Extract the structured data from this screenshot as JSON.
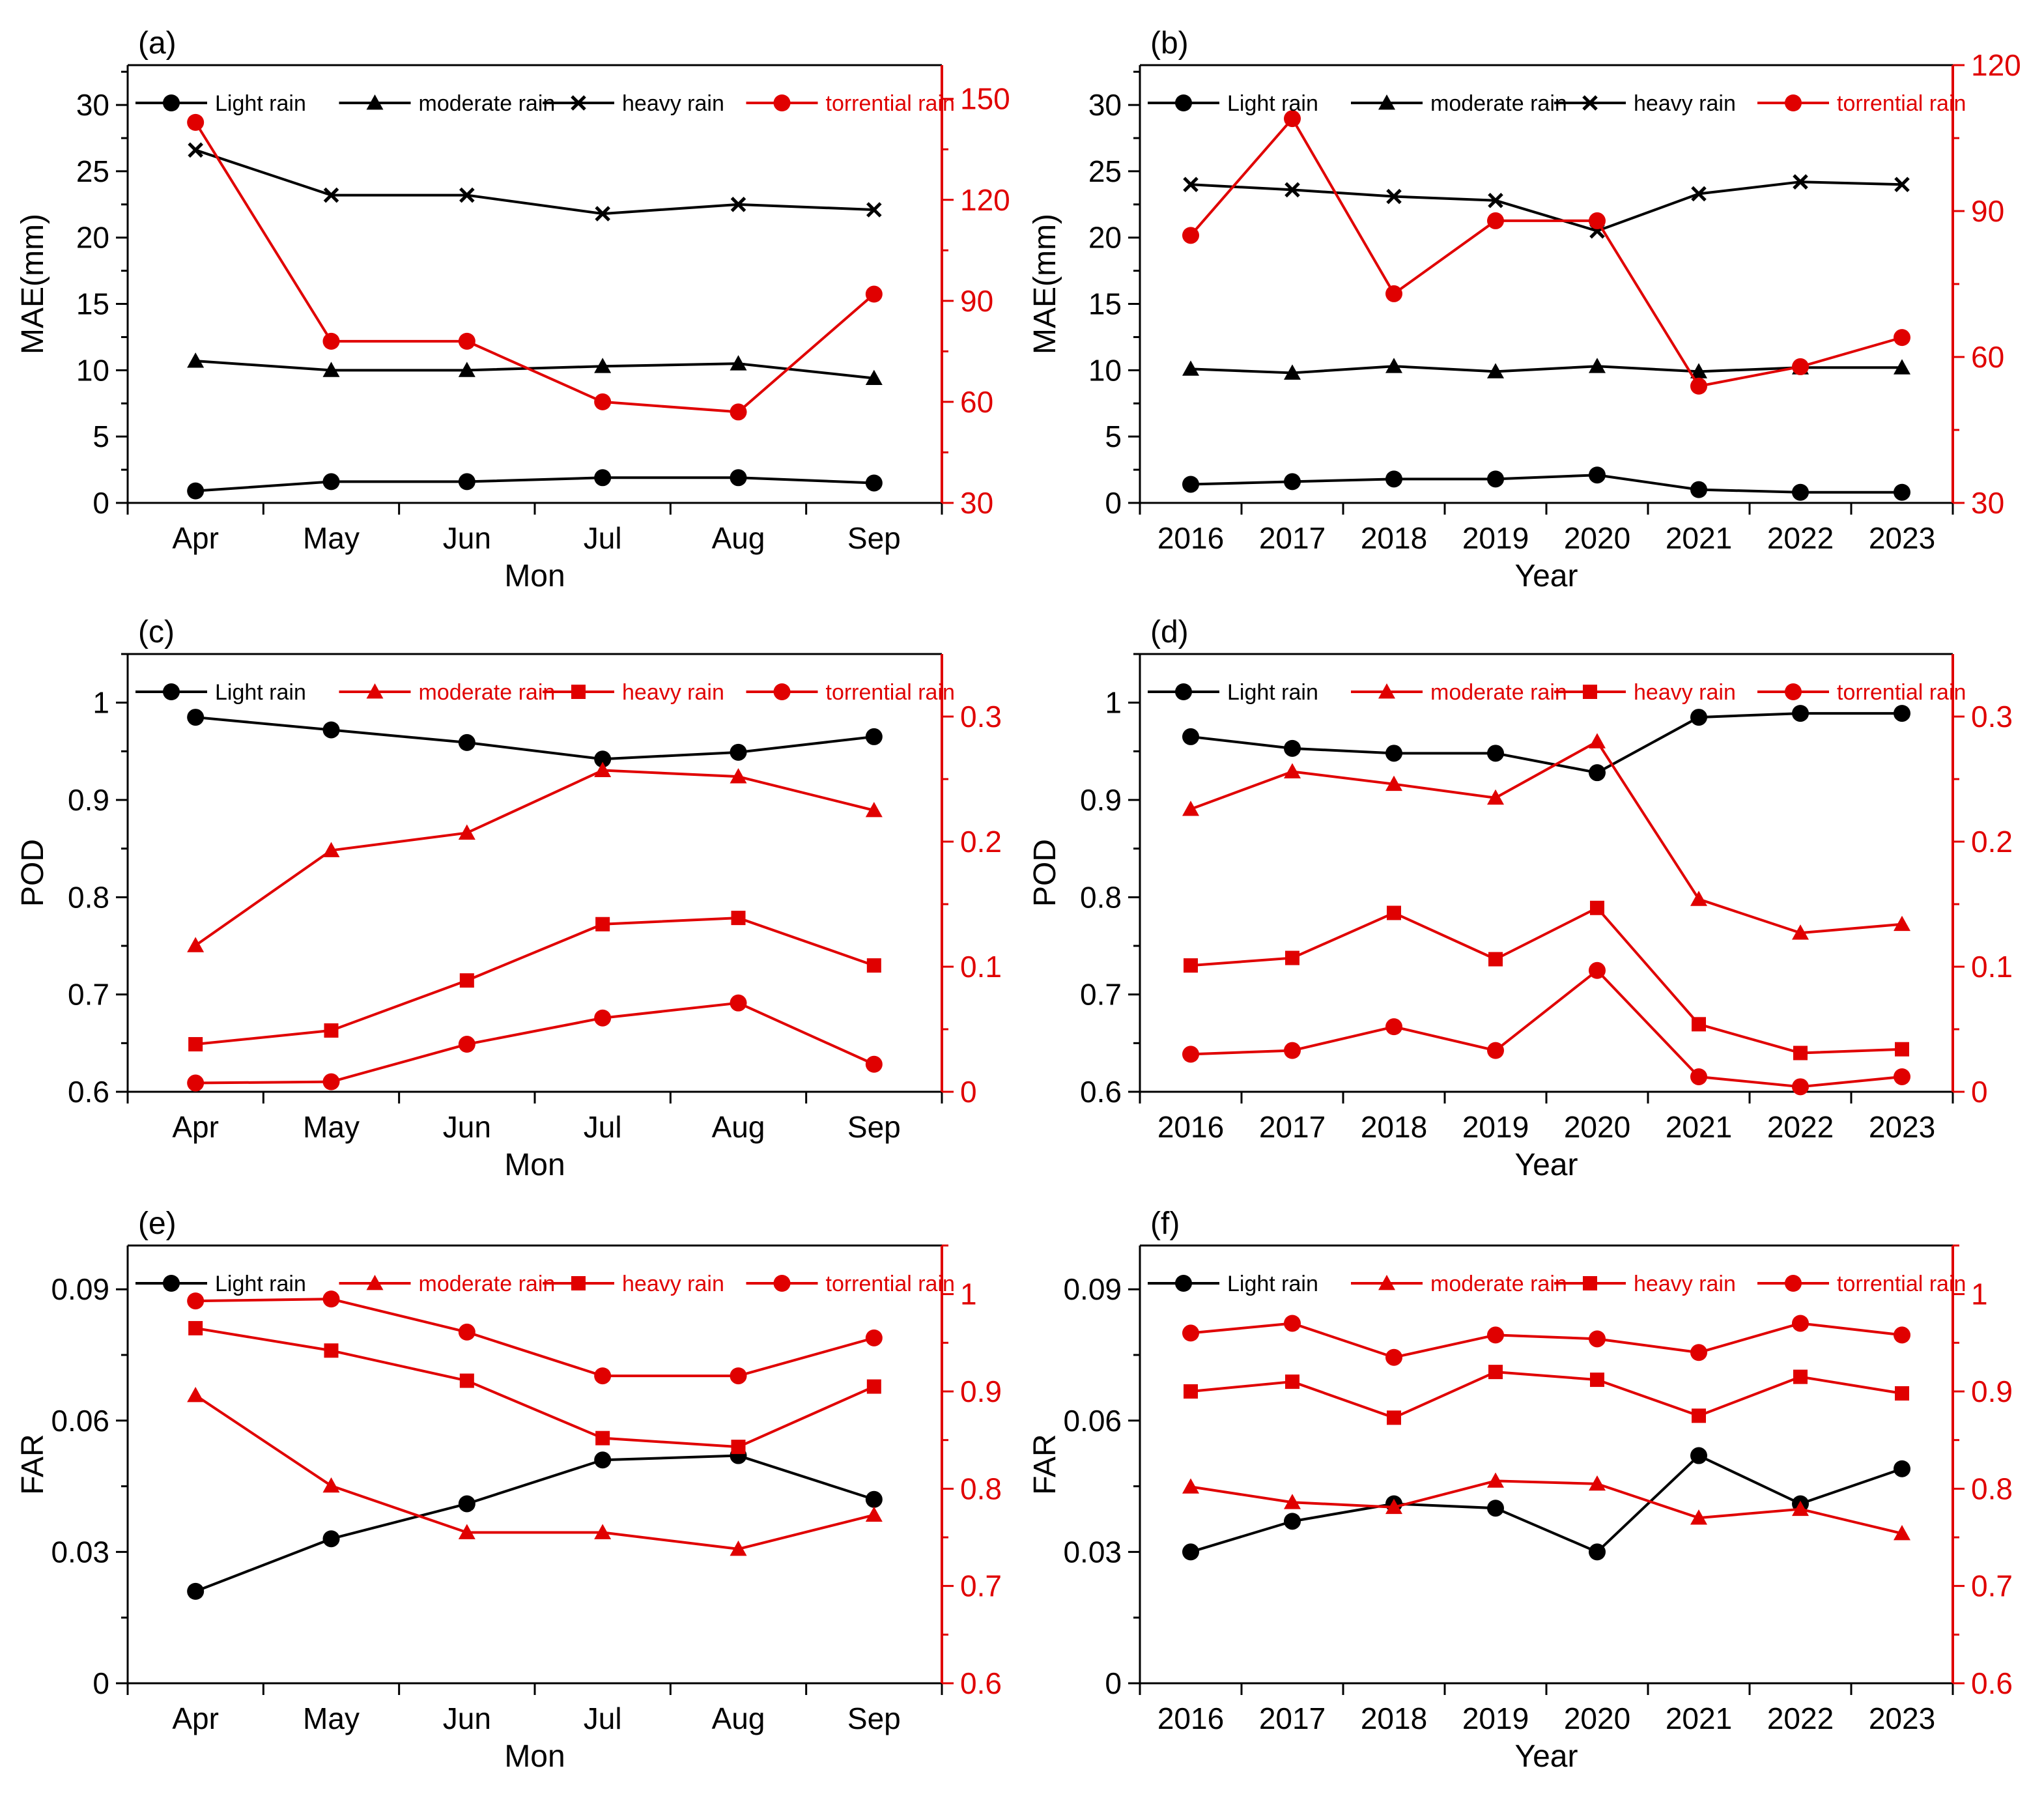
{
  "colors": {
    "black": "#000000",
    "red": "#e00000"
  },
  "chart_data": [
    {
      "type": "line",
      "panel_label": "(a)",
      "xlabel": "Mon",
      "ylabel": "MAE(mm)",
      "categories": [
        "Apr",
        "May",
        "Jun",
        "Jul",
        "Aug",
        "Sep"
      ],
      "left_axis": {
        "ylim": [
          0,
          33
        ],
        "ticks": [
          0,
          5,
          10,
          15,
          20,
          25,
          30
        ],
        "tick_labels": [
          "0",
          "5",
          "10",
          "15",
          "20",
          "25",
          "30"
        ]
      },
      "right_axis": {
        "ylim": [
          30,
          160
        ],
        "ticks": [
          30,
          60,
          90,
          120,
          150
        ],
        "tick_labels": [
          "30",
          "60",
          "90",
          "120",
          "150"
        ]
      },
      "series": [
        {
          "name": "Light rain",
          "axis": "left",
          "color": "black",
          "marker": "circle",
          "values": [
            0.9,
            1.6,
            1.6,
            1.9,
            1.9,
            1.5
          ]
        },
        {
          "name": "moderate rain",
          "axis": "left",
          "color": "black",
          "marker": "triangle",
          "values": [
            10.7,
            10.0,
            10.0,
            10.3,
            10.5,
            9.4
          ]
        },
        {
          "name": "heavy rain",
          "axis": "left",
          "color": "black",
          "marker": "x",
          "values": [
            26.6,
            23.2,
            23.2,
            21.8,
            22.5,
            22.1
          ]
        },
        {
          "name": "torrential rain",
          "axis": "right",
          "color": "red",
          "marker": "circle",
          "values": [
            143,
            78,
            78,
            60,
            57,
            92
          ]
        }
      ]
    },
    {
      "type": "line",
      "panel_label": "(b)",
      "xlabel": "Year",
      "ylabel": "MAE(mm)",
      "categories": [
        "2016",
        "2017",
        "2018",
        "2019",
        "2020",
        "2021",
        "2022",
        "2023"
      ],
      "left_axis": {
        "ylim": [
          0,
          33
        ],
        "ticks": [
          0,
          5,
          10,
          15,
          20,
          25,
          30
        ],
        "tick_labels": [
          "0",
          "5",
          "10",
          "15",
          "20",
          "25",
          "30"
        ]
      },
      "right_axis": {
        "ylim": [
          30,
          120
        ],
        "ticks": [
          30,
          60,
          90,
          120
        ],
        "tick_labels": [
          "30",
          "60",
          "90",
          "120"
        ]
      },
      "series": [
        {
          "name": "Light rain",
          "axis": "left",
          "color": "black",
          "marker": "circle",
          "values": [
            1.4,
            1.6,
            1.8,
            1.8,
            2.1,
            1.0,
            0.8,
            0.8
          ]
        },
        {
          "name": "moderate rain",
          "axis": "left",
          "color": "black",
          "marker": "triangle",
          "values": [
            10.1,
            9.8,
            10.3,
            9.9,
            10.3,
            9.9,
            10.2,
            10.2
          ]
        },
        {
          "name": "heavy rain",
          "axis": "left",
          "color": "black",
          "marker": "x",
          "values": [
            24.0,
            23.6,
            23.1,
            22.8,
            20.5,
            23.3,
            24.2,
            24.0
          ]
        },
        {
          "name": "torrential rain",
          "axis": "right",
          "color": "red",
          "marker": "circle",
          "values": [
            85,
            109,
            73,
            88,
            88,
            54,
            58,
            64
          ]
        }
      ]
    },
    {
      "type": "line",
      "panel_label": "(c)",
      "xlabel": "Mon",
      "ylabel": "POD",
      "categories": [
        "Apr",
        "May",
        "Jun",
        "Jul",
        "Aug",
        "Sep"
      ],
      "left_axis": {
        "ylim": [
          0.6,
          1.05
        ],
        "ticks": [
          0.6,
          0.7,
          0.8,
          0.9,
          1.0
        ],
        "tick_labels": [
          "0.6",
          "0.7",
          "0.8",
          "0.9",
          "1"
        ]
      },
      "right_axis": {
        "ylim": [
          0,
          0.35
        ],
        "ticks": [
          0,
          0.1,
          0.2,
          0.3
        ],
        "tick_labels": [
          "0",
          "0.1",
          "0.2",
          "0.3"
        ]
      },
      "series": [
        {
          "name": "Light rain",
          "axis": "left",
          "color": "black",
          "marker": "circle",
          "values": [
            0.985,
            0.972,
            0.959,
            0.942,
            0.949,
            0.965
          ]
        },
        {
          "name": "moderate rain",
          "axis": "right",
          "color": "red",
          "marker": "triangle",
          "values": [
            0.117,
            0.193,
            0.207,
            0.257,
            0.252,
            0.225
          ]
        },
        {
          "name": "heavy rain",
          "axis": "right",
          "color": "red",
          "marker": "square",
          "values": [
            0.038,
            0.049,
            0.089,
            0.134,
            0.139,
            0.101
          ]
        },
        {
          "name": "torrential rain",
          "axis": "right",
          "color": "red",
          "marker": "circle",
          "values": [
            0.007,
            0.008,
            0.038,
            0.059,
            0.071,
            0.022
          ]
        }
      ]
    },
    {
      "type": "line",
      "panel_label": "(d)",
      "xlabel": "Year",
      "ylabel": "POD",
      "categories": [
        "2016",
        "2017",
        "2018",
        "2019",
        "2020",
        "2021",
        "2022",
        "2023"
      ],
      "left_axis": {
        "ylim": [
          0.6,
          1.05
        ],
        "ticks": [
          0.6,
          0.7,
          0.8,
          0.9,
          1.0
        ],
        "tick_labels": [
          "0.6",
          "0.7",
          "0.8",
          "0.9",
          "1"
        ]
      },
      "right_axis": {
        "ylim": [
          0,
          0.35
        ],
        "ticks": [
          0,
          0.1,
          0.2,
          0.3
        ],
        "tick_labels": [
          "0",
          "0.1",
          "0.2",
          "0.3"
        ]
      },
      "series": [
        {
          "name": "Light rain",
          "axis": "left",
          "color": "black",
          "marker": "circle",
          "values": [
            0.965,
            0.953,
            0.948,
            0.948,
            0.928,
            0.985,
            0.989,
            0.989
          ]
        },
        {
          "name": "moderate rain",
          "axis": "right",
          "color": "red",
          "marker": "triangle",
          "values": [
            0.226,
            0.256,
            0.246,
            0.235,
            0.28,
            0.154,
            0.127,
            0.134
          ]
        },
        {
          "name": "heavy rain",
          "axis": "right",
          "color": "red",
          "marker": "square",
          "values": [
            0.101,
            0.107,
            0.143,
            0.106,
            0.147,
            0.054,
            0.031,
            0.034
          ]
        },
        {
          "name": "torrential rain",
          "axis": "right",
          "color": "red",
          "marker": "circle",
          "values": [
            0.03,
            0.033,
            0.052,
            0.033,
            0.097,
            0.012,
            0.004,
            0.012
          ]
        }
      ]
    },
    {
      "type": "line",
      "panel_label": "(e)",
      "xlabel": "Mon",
      "ylabel": "FAR",
      "categories": [
        "Apr",
        "May",
        "Jun",
        "Jul",
        "Aug",
        "Sep"
      ],
      "left_axis": {
        "ylim": [
          0,
          0.1
        ],
        "ticks": [
          0,
          0.03,
          0.06,
          0.09
        ],
        "tick_labels": [
          "0",
          "0.03",
          "0.06",
          "0.09"
        ]
      },
      "right_axis": {
        "ylim": [
          0.6,
          1.05
        ],
        "ticks": [
          0.6,
          0.7,
          0.8,
          0.9,
          1.0
        ],
        "tick_labels": [
          "0.6",
          "0.7",
          "0.8",
          "0.9",
          "1"
        ]
      },
      "series": [
        {
          "name": "Light rain",
          "axis": "left",
          "color": "black",
          "marker": "circle",
          "values": [
            0.021,
            0.033,
            0.041,
            0.051,
            0.052,
            0.042
          ]
        },
        {
          "name": "moderate rain",
          "axis": "right",
          "color": "red",
          "marker": "triangle",
          "values": [
            0.896,
            0.803,
            0.755,
            0.755,
            0.738,
            0.773
          ]
        },
        {
          "name": "heavy rain",
          "axis": "right",
          "color": "red",
          "marker": "square",
          "values": [
            0.965,
            0.942,
            0.911,
            0.852,
            0.843,
            0.905
          ]
        },
        {
          "name": "torrential rain",
          "axis": "right",
          "color": "red",
          "marker": "circle",
          "values": [
            0.993,
            0.995,
            0.961,
            0.916,
            0.916,
            0.955
          ]
        }
      ]
    },
    {
      "type": "line",
      "panel_label": "(f)",
      "xlabel": "Year",
      "ylabel": "FAR",
      "categories": [
        "2016",
        "2017",
        "2018",
        "2019",
        "2020",
        "2021",
        "2022",
        "2023"
      ],
      "left_axis": {
        "ylim": [
          0,
          0.1
        ],
        "ticks": [
          0,
          0.03,
          0.06,
          0.09
        ],
        "tick_labels": [
          "0",
          "0.03",
          "0.06",
          "0.09"
        ]
      },
      "right_axis": {
        "ylim": [
          0.6,
          1.05
        ],
        "ticks": [
          0.6,
          0.7,
          0.8,
          0.9,
          1.0
        ],
        "tick_labels": [
          "0.6",
          "0.7",
          "0.8",
          "0.9",
          "1"
        ]
      },
      "series": [
        {
          "name": "Light rain",
          "axis": "left",
          "color": "black",
          "marker": "circle",
          "values": [
            0.03,
            0.037,
            0.041,
            0.04,
            0.03,
            0.052,
            0.041,
            0.049
          ]
        },
        {
          "name": "moderate rain",
          "axis": "right",
          "color": "red",
          "marker": "triangle",
          "values": [
            0.802,
            0.786,
            0.781,
            0.808,
            0.805,
            0.77,
            0.779,
            0.754
          ]
        },
        {
          "name": "heavy rain",
          "axis": "right",
          "color": "red",
          "marker": "square",
          "values": [
            0.9,
            0.91,
            0.873,
            0.92,
            0.912,
            0.875,
            0.915,
            0.898
          ]
        },
        {
          "name": "torrential rain",
          "axis": "right",
          "color": "red",
          "marker": "circle",
          "values": [
            0.96,
            0.97,
            0.935,
            0.958,
            0.954,
            0.94,
            0.97,
            0.958
          ]
        }
      ]
    }
  ]
}
